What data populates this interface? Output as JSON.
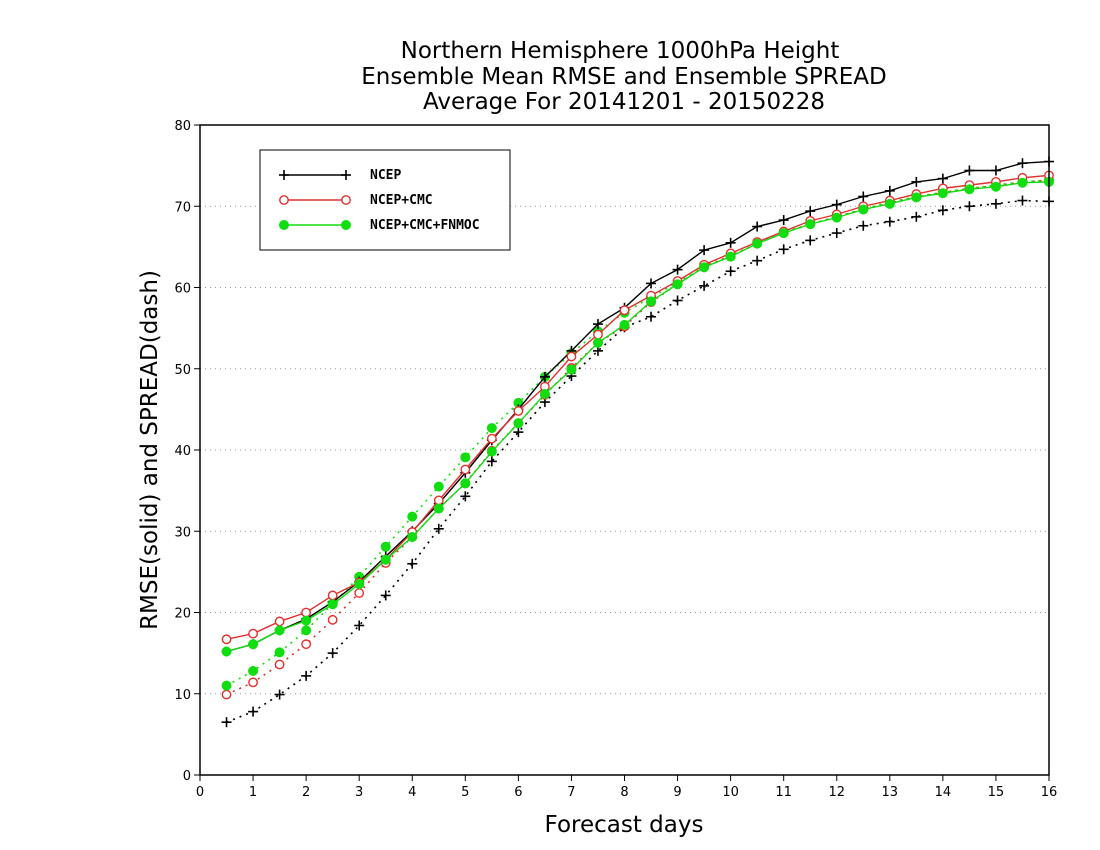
{
  "chart_data": {
    "type": "line",
    "title": [
      "Northern Hemisphere 1000hPa Height",
      "Ensemble Mean RMSE and Ensemble SPREAD",
      "Average For 20141201 - 20150228"
    ],
    "xlabel": "Forecast days",
    "ylabel": "RMSE(solid) and SPREAD(dash)",
    "xlim": [
      0,
      16
    ],
    "ylim": [
      0,
      80
    ],
    "xticks": [
      "0",
      "1",
      "2",
      "3",
      "4",
      "5",
      "6",
      "7",
      "8",
      "9",
      "10",
      "11",
      "12",
      "13",
      "14",
      "15",
      "16"
    ],
    "yticks": [
      "0",
      "10",
      "20",
      "30",
      "40",
      "50",
      "60",
      "70",
      "80"
    ],
    "grid": "horizontal dotted",
    "legend_position": "top-left",
    "x": [
      0.5,
      1,
      1.5,
      2,
      2.5,
      3,
      3.5,
      4,
      4.5,
      5,
      5.5,
      6,
      6.5,
      7,
      7.5,
      8,
      8.5,
      9,
      9.5,
      10,
      10.5,
      11,
      11.5,
      12,
      12.5,
      13,
      13.5,
      14,
      14.5,
      15,
      15.5,
      16
    ],
    "series": [
      {
        "name": "NCEP",
        "color": "#000000",
        "marker": "plus",
        "rmse": [
          15.2,
          16.1,
          17.8,
          19.2,
          21.3,
          23.8,
          26.9,
          30.0,
          33.4,
          37.2,
          41.2,
          45.0,
          49.0,
          52.2,
          55.5,
          57.5,
          60.5,
          62.2,
          64.6,
          65.5,
          67.5,
          68.3,
          69.4,
          70.2,
          71.2,
          71.9,
          73.0,
          73.4,
          74.4,
          74.4,
          75.3,
          75.5
        ],
        "spread": [
          6.5,
          7.8,
          9.9,
          12.2,
          15.0,
          18.4,
          22.1,
          26.0,
          30.3,
          34.3,
          38.6,
          42.2,
          45.9,
          49.1,
          52.2,
          55.1,
          56.4,
          58.4,
          60.2,
          62.0,
          63.3,
          64.7,
          65.8,
          66.7,
          67.6,
          68.1,
          68.7,
          69.5,
          70.0,
          70.3,
          70.7,
          70.6
        ]
      },
      {
        "name": "NCEP+CMC",
        "color": "#e03030",
        "marker": "open-circle",
        "rmse": [
          16.7,
          17.4,
          18.9,
          20.0,
          22.1,
          23.7,
          26.5,
          29.9,
          33.8,
          37.6,
          41.4,
          44.8,
          47.8,
          51.5,
          54.2,
          57.2,
          59.0,
          60.8,
          62.8,
          64.2,
          65.6,
          66.9,
          68.2,
          69.0,
          70.0,
          70.7,
          71.5,
          72.2,
          72.6,
          73.0,
          73.5,
          73.8
        ],
        "spread": [
          9.9,
          11.4,
          13.6,
          16.1,
          19.1,
          22.4,
          26.1,
          29.3,
          32.8,
          35.9,
          39.9,
          43.3,
          46.8,
          50.1,
          53.2,
          55.2,
          58.2,
          60.4,
          62.6,
          63.9,
          65.4,
          66.8,
          67.8,
          68.7,
          69.6,
          70.4,
          71.1,
          71.7,
          72.2,
          72.5,
          73.0,
          73.2
        ]
      },
      {
        "name": "NCEP+CMC+FNMOC",
        "color": "#11dd11",
        "marker": "filled-circle",
        "rmse": [
          15.2,
          16.1,
          17.8,
          19.0,
          21.0,
          23.5,
          26.5,
          29.3,
          32.8,
          35.9,
          39.8,
          43.3,
          46.9,
          49.9,
          53.2,
          55.4,
          58.3,
          60.4,
          62.5,
          63.8,
          65.4,
          66.7,
          67.8,
          68.6,
          69.6,
          70.3,
          71.1,
          71.6,
          72.1,
          72.4,
          72.9,
          73.0
        ],
        "spread": [
          11.0,
          12.8,
          15.1,
          17.8,
          21.1,
          24.4,
          28.1,
          31.8,
          35.5,
          39.1,
          42.7,
          45.8,
          49.0,
          51.9,
          54.6,
          56.9,
          58.8,
          60.6,
          62.5,
          63.8,
          65.4,
          66.7,
          67.8,
          68.7,
          69.7,
          70.5,
          71.2,
          71.7,
          72.2,
          72.6,
          73.0,
          73.2
        ]
      }
    ]
  }
}
